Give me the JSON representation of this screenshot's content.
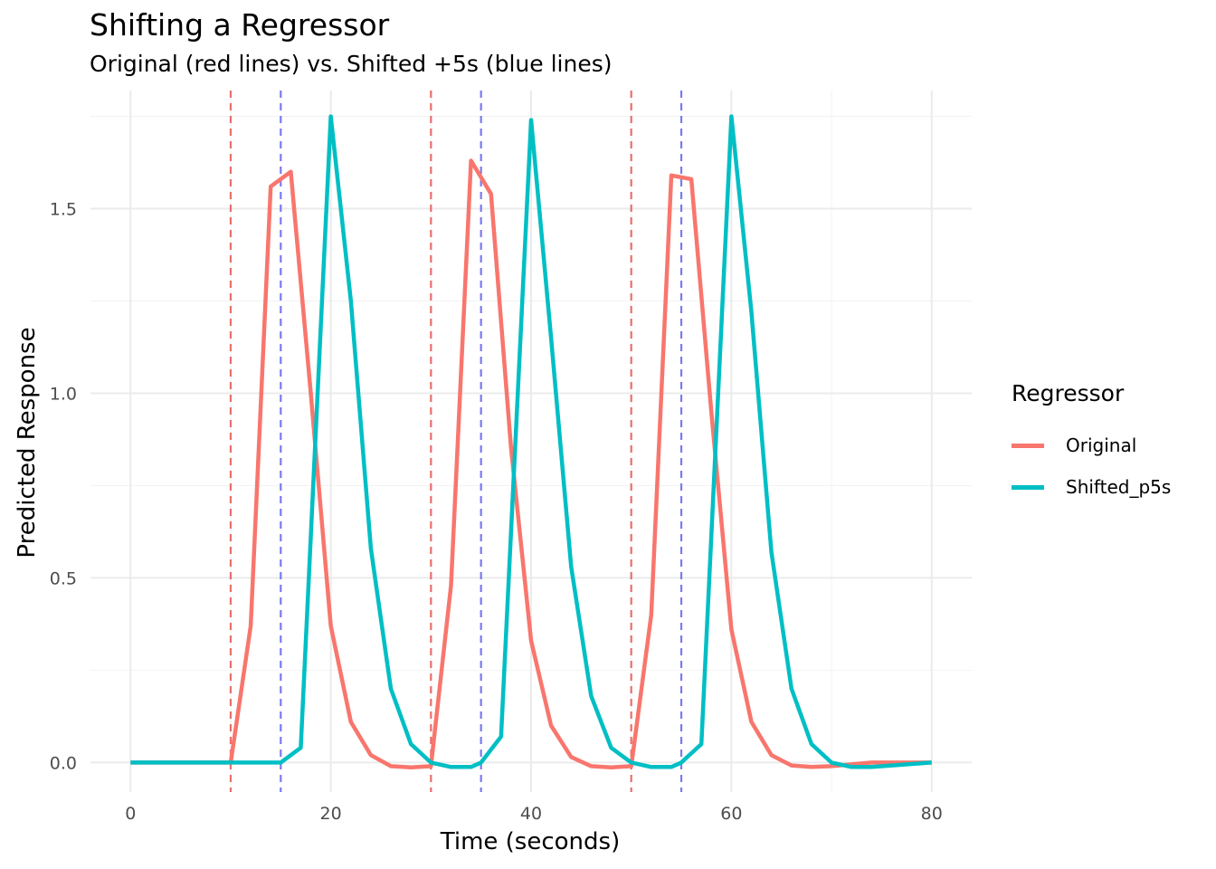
{
  "chart_data": {
    "type": "line",
    "title": "Shifting a Regressor",
    "subtitle": "Original (red lines) vs. Shifted +5s (blue lines)",
    "xlabel": "Time (seconds)",
    "ylabel": "Predicted Response",
    "xlim": [
      -4,
      84
    ],
    "ylim": [
      -0.08,
      1.82
    ],
    "x_ticks": [
      0,
      20,
      40,
      60,
      80
    ],
    "x_tick_labels": [
      "0",
      "20",
      "40",
      "60",
      "80"
    ],
    "y_ticks": [
      0,
      0.5,
      1.0,
      1.5
    ],
    "y_tick_labels": [
      "0.0",
      "0.5",
      "1.0",
      "1.5"
    ],
    "grid": true,
    "legend_title": "Regressor",
    "legend_position": "right",
    "x": [
      0,
      2,
      4,
      6,
      8,
      10,
      12,
      14,
      16,
      18,
      20,
      22,
      24,
      26,
      28,
      30,
      32,
      34,
      36,
      38,
      40,
      42,
      44,
      46,
      48,
      50,
      52,
      54,
      56,
      58,
      60,
      62,
      64,
      66,
      68,
      70,
      72,
      74,
      76,
      78,
      80
    ],
    "series": [
      {
        "name": "Original",
        "color": "#F8766D",
        "points": [
          [
            0,
            0
          ],
          [
            2,
            0
          ],
          [
            4,
            0
          ],
          [
            6,
            0
          ],
          [
            8,
            0
          ],
          [
            10,
            0
          ],
          [
            12,
            0.37
          ],
          [
            14,
            1.56
          ],
          [
            16,
            1.6
          ],
          [
            18,
            1.0
          ],
          [
            20,
            0.37
          ],
          [
            22,
            0.11
          ],
          [
            24,
            0.02
          ],
          [
            26,
            -0.01
          ],
          [
            28,
            -0.013
          ],
          [
            30,
            -0.01
          ],
          [
            32,
            0.48
          ],
          [
            34,
            1.63
          ],
          [
            36,
            1.54
          ],
          [
            38,
            0.85
          ],
          [
            40,
            0.33
          ],
          [
            42,
            0.1
          ],
          [
            44,
            0.015
          ],
          [
            46,
            -0.01
          ],
          [
            48,
            -0.013
          ],
          [
            50,
            -0.01
          ],
          [
            52,
            0.4
          ],
          [
            54,
            1.59
          ],
          [
            56,
            1.58
          ],
          [
            58,
            0.95
          ],
          [
            60,
            0.36
          ],
          [
            62,
            0.11
          ],
          [
            64,
            0.02
          ],
          [
            66,
            -0.008
          ],
          [
            68,
            -0.012
          ],
          [
            70,
            -0.01
          ],
          [
            72,
            -0.005
          ],
          [
            74,
            0
          ],
          [
            76,
            0
          ],
          [
            78,
            0
          ],
          [
            80,
            0
          ]
        ]
      },
      {
        "name": "Shifted_p5s",
        "color": "#00BFC4",
        "points": [
          [
            0,
            0
          ],
          [
            2,
            0
          ],
          [
            4,
            0
          ],
          [
            6,
            0
          ],
          [
            8,
            0
          ],
          [
            10,
            0
          ],
          [
            12,
            0
          ],
          [
            14,
            0
          ],
          [
            15,
            0
          ],
          [
            17,
            0.04
          ],
          [
            20,
            1.75
          ],
          [
            22,
            1.25
          ],
          [
            24,
            0.58
          ],
          [
            26,
            0.2
          ],
          [
            28,
            0.05
          ],
          [
            30,
            0
          ],
          [
            32,
            -0.012
          ],
          [
            34,
            -0.012
          ],
          [
            35,
            0
          ],
          [
            37,
            0.07
          ],
          [
            40,
            1.74
          ],
          [
            42,
            1.15
          ],
          [
            44,
            0.53
          ],
          [
            46,
            0.18
          ],
          [
            48,
            0.04
          ],
          [
            50,
            0
          ],
          [
            52,
            -0.012
          ],
          [
            54,
            -0.012
          ],
          [
            55,
            0
          ],
          [
            57,
            0.05
          ],
          [
            60,
            1.75
          ],
          [
            62,
            1.22
          ],
          [
            64,
            0.57
          ],
          [
            66,
            0.2
          ],
          [
            68,
            0.05
          ],
          [
            70,
            0
          ],
          [
            72,
            -0.012
          ],
          [
            74,
            -0.012
          ],
          [
            76,
            -0.008
          ],
          [
            78,
            -0.004
          ],
          [
            80,
            0
          ]
        ]
      }
    ],
    "vlines": [
      {
        "x": 10,
        "color": "#E8706A"
      },
      {
        "x": 30,
        "color": "#E8706A"
      },
      {
        "x": 50,
        "color": "#E8706A"
      },
      {
        "x": 15,
        "color": "#7A7AF2"
      },
      {
        "x": 35,
        "color": "#7A7AF2"
      },
      {
        "x": 55,
        "color": "#7A7AF2"
      }
    ]
  }
}
